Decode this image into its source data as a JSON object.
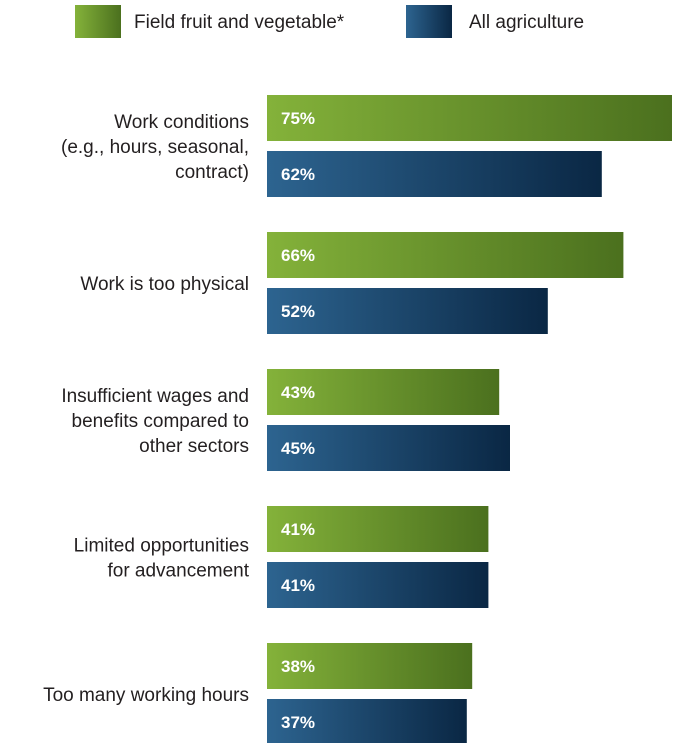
{
  "chart_data": {
    "type": "bar",
    "orientation": "horizontal",
    "categories": [
      "Work conditions (e.g., hours, seasonal, contract)",
      "Work is too physical",
      "Insufficient wages and benefits compared to other sectors",
      "Limited opportunities for advancement",
      "Too many working hours"
    ],
    "category_lines": [
      [
        "Work conditions",
        "(e.g., hours, seasonal,",
        "contract)"
      ],
      [
        "Work is too physical"
      ],
      [
        "Insufficient wages and",
        "benefits compared to",
        "other sectors"
      ],
      [
        "Limited opportunities",
        "for advancement"
      ],
      [
        "Too many working hours"
      ]
    ],
    "series": [
      {
        "name": "Field fruit and vegetable*",
        "values": [
          75,
          66,
          43,
          41,
          38
        ],
        "labels": [
          "75%",
          "66%",
          "43%",
          "41%",
          "38%"
        ]
      },
      {
        "name": "All agriculture",
        "values": [
          62,
          52,
          45,
          41,
          37
        ],
        "labels": [
          "62%",
          "52%",
          "45%",
          "41%",
          "37%"
        ]
      }
    ],
    "unit": "%",
    "xlim": [
      0,
      75
    ],
    "grid": false,
    "legend": "top"
  },
  "colors": {
    "field_fruit_start": "#84b23a",
    "field_fruit_end": "#4b701e",
    "agriculture_start": "#2d6490",
    "agriculture_end": "#0a2744",
    "text": "#231f20"
  }
}
